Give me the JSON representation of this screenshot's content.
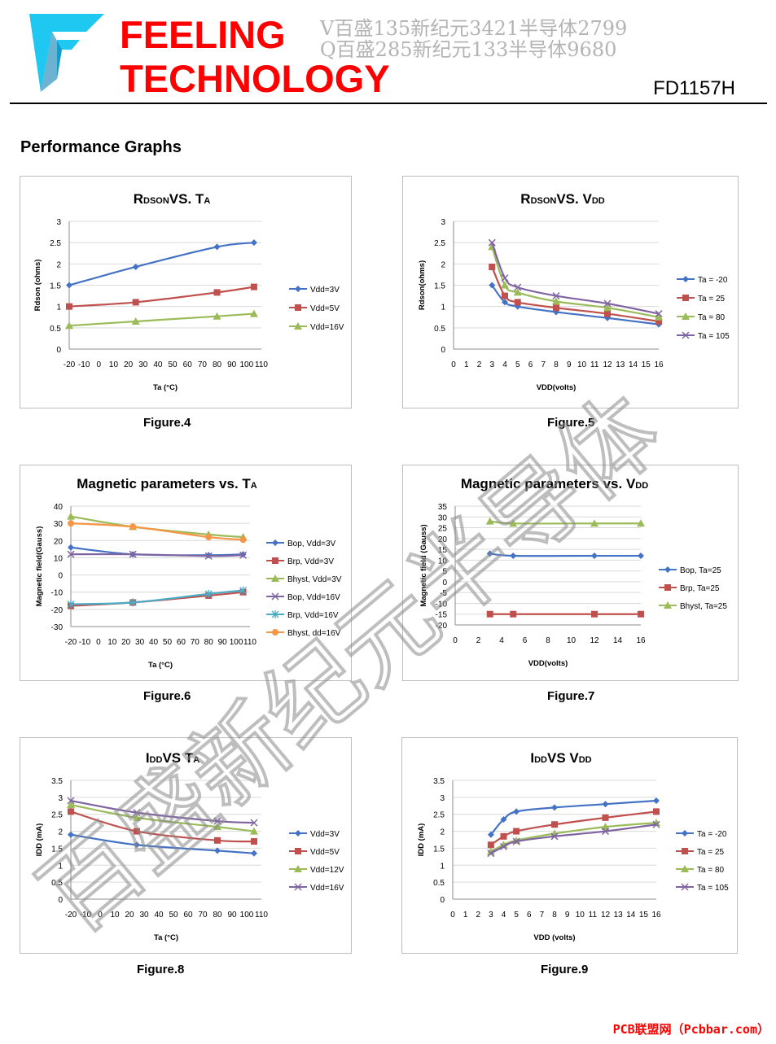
{
  "header": {
    "brand_line1": "FEELING",
    "brand_line2": "TECHNOLOGY",
    "watermark_line1": "V百盛135新纪元3421半导体2799",
    "watermark_line2": "Q百盛285新纪元133半导体9680",
    "part_number": "FD1157H",
    "brand_color": "#ff0000",
    "logo_color": "#1ec8f0"
  },
  "section_title": "Performance Graphs",
  "diagonal_watermark": "百盛新纪元半导体",
  "footer_text": "PCB联盟网（Pcbbar.com）",
  "series_colors": [
    "#4472c4",
    "#c0504d",
    "#9bbb59",
    "#8064a2",
    "#4bacc6",
    "#f79646"
  ],
  "figures": [
    {
      "caption": "Figure.4",
      "chart_data": {
        "type": "line",
        "title_main": [
          "R",
          "VS. T"
        ],
        "title_sub": [
          "DSON",
          "A"
        ],
        "xlabel": "Ta (°C)",
        "ylabel": "Rdson (ohms)",
        "xlim": [
          -20,
          110
        ],
        "xticks": [
          -20,
          -10,
          0,
          10,
          20,
          30,
          40,
          50,
          60,
          70,
          80,
          90,
          100,
          110
        ],
        "ylim": [
          0,
          3
        ],
        "yticks": [
          "0",
          "0.5",
          "1",
          "1.5",
          "2",
          "2.5",
          "3"
        ],
        "ystep": 0.5,
        "series": [
          {
            "name": "Vdd=3V",
            "marker": "diamond",
            "points": [
              [
                -20,
                1.5
              ],
              [
                25,
                1.93
              ],
              [
                80,
                2.4
              ],
              [
                105,
                2.5
              ]
            ]
          },
          {
            "name": "Vdd=5V",
            "marker": "square",
            "points": [
              [
                -20,
                1.0
              ],
              [
                25,
                1.1
              ],
              [
                80,
                1.33
              ],
              [
                105,
                1.46
              ]
            ]
          },
          {
            "name": "Vdd=16V",
            "marker": "triangle",
            "points": [
              [
                -20,
                0.55
              ],
              [
                25,
                0.65
              ],
              [
                80,
                0.77
              ],
              [
                105,
                0.83
              ]
            ]
          }
        ]
      }
    },
    {
      "caption": "Figure.5",
      "chart_data": {
        "type": "line",
        "title_main": [
          "R",
          "VS. V"
        ],
        "title_sub": [
          "DSON",
          "DD"
        ],
        "xlabel": "VDD(volts)",
        "ylabel": "Rdson(ohms)",
        "xlim": [
          0,
          16
        ],
        "xticks": [
          0,
          1,
          2,
          3,
          4,
          5,
          6,
          7,
          8,
          9,
          10,
          11,
          12,
          13,
          14,
          15,
          16
        ],
        "ylim": [
          0,
          3
        ],
        "yticks": [
          "0",
          "0.5",
          "1",
          "1.5",
          "2",
          "2.5",
          "3"
        ],
        "ystep": 0.5,
        "series": [
          {
            "name": "Ta = -20",
            "marker": "diamond",
            "points": [
              [
                3,
                1.5
              ],
              [
                4,
                1.1
              ],
              [
                5,
                1.0
              ],
              [
                8,
                0.87
              ],
              [
                12,
                0.73
              ],
              [
                16,
                0.58
              ]
            ]
          },
          {
            "name": "Ta = 25",
            "marker": "square",
            "points": [
              [
                3,
                1.93
              ],
              [
                4,
                1.25
              ],
              [
                5,
                1.1
              ],
              [
                8,
                0.97
              ],
              [
                12,
                0.83
              ],
              [
                16,
                0.65
              ]
            ]
          },
          {
            "name": "Ta = 80",
            "marker": "triangle",
            "points": [
              [
                3,
                2.4
              ],
              [
                4,
                1.5
              ],
              [
                5,
                1.33
              ],
              [
                8,
                1.12
              ],
              [
                12,
                0.97
              ],
              [
                16,
                0.75
              ]
            ]
          },
          {
            "name": "Ta = 105",
            "marker": "x",
            "points": [
              [
                3,
                2.5
              ],
              [
                4,
                1.67
              ],
              [
                5,
                1.45
              ],
              [
                8,
                1.25
              ],
              [
                12,
                1.07
              ],
              [
                16,
                0.83
              ]
            ]
          }
        ]
      }
    },
    {
      "caption": "Figure.6",
      "chart_data": {
        "type": "line",
        "title_main": [
          "Magnetic parameters vs. T",
          ""
        ],
        "title_sub": [
          "A",
          ""
        ],
        "xlabel": "Ta (°C)",
        "ylabel": "Magnetic field(Gauss)",
        "xlim": [
          -20,
          110
        ],
        "xticks": [
          -20,
          -10,
          0,
          10,
          20,
          30,
          40,
          50,
          60,
          70,
          80,
          90,
          100,
          110
        ],
        "ylim": [
          -30,
          40
        ],
        "yticks": [
          "-30",
          "-20",
          "-10",
          "0",
          "10",
          "20",
          "30",
          "40"
        ],
        "ystep": 10,
        "series": [
          {
            "name": "Bop, Vdd=3V",
            "marker": "diamond",
            "points": [
              [
                -20,
                16
              ],
              [
                25,
                12
              ],
              [
                80,
                11.5
              ],
              [
                105,
                12
              ]
            ]
          },
          {
            "name": "Brp, Vdd=3V",
            "marker": "square",
            "points": [
              [
                -20,
                -18
              ],
              [
                25,
                -16
              ],
              [
                80,
                -12
              ],
              [
                105,
                -10
              ]
            ]
          },
          {
            "name": "Bhyst, Vdd=3V",
            "marker": "triangle",
            "points": [
              [
                -20,
                34
              ],
              [
                25,
                28
              ],
              [
                80,
                23.5
              ],
              [
                105,
                22
              ]
            ]
          },
          {
            "name": "Bop, Vdd=16V",
            "marker": "x",
            "points": [
              [
                -20,
                12
              ],
              [
                25,
                12
              ],
              [
                80,
                11
              ],
              [
                105,
                11.5
              ]
            ]
          },
          {
            "name": "Brp, Vdd=16V",
            "marker": "star",
            "points": [
              [
                -20,
                -17
              ],
              [
                25,
                -16
              ],
              [
                80,
                -11
              ],
              [
                105,
                -9
              ]
            ]
          },
          {
            "name": "Bhyst, dd=16V",
            "marker": "circle",
            "points": [
              [
                -20,
                30
              ],
              [
                25,
                28
              ],
              [
                80,
                22
              ],
              [
                105,
                20.5
              ]
            ]
          }
        ]
      }
    },
    {
      "caption": "Figure.7",
      "chart_data": {
        "type": "line",
        "title_main": [
          "Magnetic parameters vs. V",
          ""
        ],
        "title_sub": [
          "DD",
          ""
        ],
        "xlabel": "VDD(volts)",
        "ylabel": "Magnetic field (Gauss)",
        "xlim": [
          0,
          16
        ],
        "xticks": [
          0,
          2,
          4,
          6,
          8,
          10,
          12,
          14,
          16
        ],
        "ylim": [
          -20,
          35
        ],
        "yticks": [
          "-20",
          "-15",
          "-10",
          "-5",
          "0",
          "5",
          "10",
          "15",
          "20",
          "25",
          "30",
          "35"
        ],
        "ystep": 5,
        "series": [
          {
            "name": "Bop, Ta=25",
            "marker": "diamond",
            "points": [
              [
                3,
                13
              ],
              [
                5,
                12
              ],
              [
                12,
                12
              ],
              [
                16,
                12
              ]
            ]
          },
          {
            "name": "Brp, Ta=25",
            "marker": "square",
            "points": [
              [
                3,
                -15
              ],
              [
                5,
                -15
              ],
              [
                12,
                -15
              ],
              [
                16,
                -15
              ]
            ]
          },
          {
            "name": "Bhyst, Ta=25",
            "marker": "triangle",
            "points": [
              [
                3,
                28
              ],
              [
                5,
                27
              ],
              [
                12,
                27
              ],
              [
                16,
                27
              ]
            ]
          }
        ]
      }
    },
    {
      "caption": "Figure.8",
      "chart_data": {
        "type": "line",
        "title_main": [
          "I",
          "VS T"
        ],
        "title_sub": [
          "DD",
          "A"
        ],
        "xlabel": "Ta (°C)",
        "ylabel": "IDD (mA)",
        "xlim": [
          -20,
          110
        ],
        "xticks": [
          -20,
          -10,
          0,
          10,
          20,
          30,
          40,
          50,
          60,
          70,
          80,
          90,
          100,
          110
        ],
        "ylim": [
          0,
          3.5
        ],
        "yticks": [
          "0",
          "0.5",
          "1",
          "1.5",
          "2",
          "2.5",
          "3",
          "3.5"
        ],
        "ystep": 0.5,
        "series": [
          {
            "name": "Vdd=3V",
            "marker": "diamond",
            "points": [
              [
                -20,
                1.9
              ],
              [
                25,
                1.6
              ],
              [
                80,
                1.43
              ],
              [
                105,
                1.35
              ]
            ]
          },
          {
            "name": "Vdd=5V",
            "marker": "square",
            "points": [
              [
                -20,
                2.58
              ],
              [
                25,
                2.0
              ],
              [
                80,
                1.73
              ],
              [
                105,
                1.7
              ]
            ]
          },
          {
            "name": "Vdd=12V",
            "marker": "triangle",
            "points": [
              [
                -20,
                2.78
              ],
              [
                25,
                2.4
              ],
              [
                80,
                2.13
              ],
              [
                105,
                2.0
              ]
            ]
          },
          {
            "name": "Vdd=16V",
            "marker": "x",
            "points": [
              [
                -20,
                2.9
              ],
              [
                25,
                2.55
              ],
              [
                80,
                2.3
              ],
              [
                105,
                2.25
              ]
            ]
          }
        ]
      }
    },
    {
      "caption": "Figure.9",
      "chart_data": {
        "type": "line",
        "title_main": [
          "I",
          "VS V"
        ],
        "title_sub": [
          "DD",
          "DD"
        ],
        "xlabel": "VDD (volts)",
        "ylabel": "IDD (mA)",
        "xlim": [
          0,
          16
        ],
        "xticks": [
          0,
          1,
          2,
          3,
          4,
          5,
          6,
          7,
          8,
          9,
          10,
          11,
          12,
          13,
          14,
          15,
          16
        ],
        "ylim": [
          0,
          3.5
        ],
        "yticks": [
          "0",
          "0.5",
          "1",
          "1.5",
          "2",
          "2.5",
          "3",
          "3.5"
        ],
        "ystep": 0.5,
        "series": [
          {
            "name": "Ta = -20",
            "marker": "diamond",
            "points": [
              [
                3,
                1.9
              ],
              [
                4,
                2.35
              ],
              [
                5,
                2.58
              ],
              [
                8,
                2.7
              ],
              [
                12,
                2.8
              ],
              [
                16,
                2.9
              ]
            ]
          },
          {
            "name": "Ta = 25",
            "marker": "square",
            "points": [
              [
                3,
                1.6
              ],
              [
                4,
                1.85
              ],
              [
                5,
                2.0
              ],
              [
                8,
                2.2
              ],
              [
                12,
                2.4
              ],
              [
                16,
                2.58
              ]
            ]
          },
          {
            "name": "Ta = 80",
            "marker": "triangle",
            "points": [
              [
                3,
                1.4
              ],
              [
                4,
                1.6
              ],
              [
                5,
                1.73
              ],
              [
                8,
                1.93
              ],
              [
                12,
                2.13
              ],
              [
                16,
                2.25
              ]
            ]
          },
          {
            "name": "Ta = 105",
            "marker": "x",
            "points": [
              [
                3,
                1.35
              ],
              [
                4,
                1.55
              ],
              [
                5,
                1.7
              ],
              [
                8,
                1.85
              ],
              [
                12,
                2.0
              ],
              [
                16,
                2.2
              ]
            ]
          }
        ]
      }
    }
  ]
}
